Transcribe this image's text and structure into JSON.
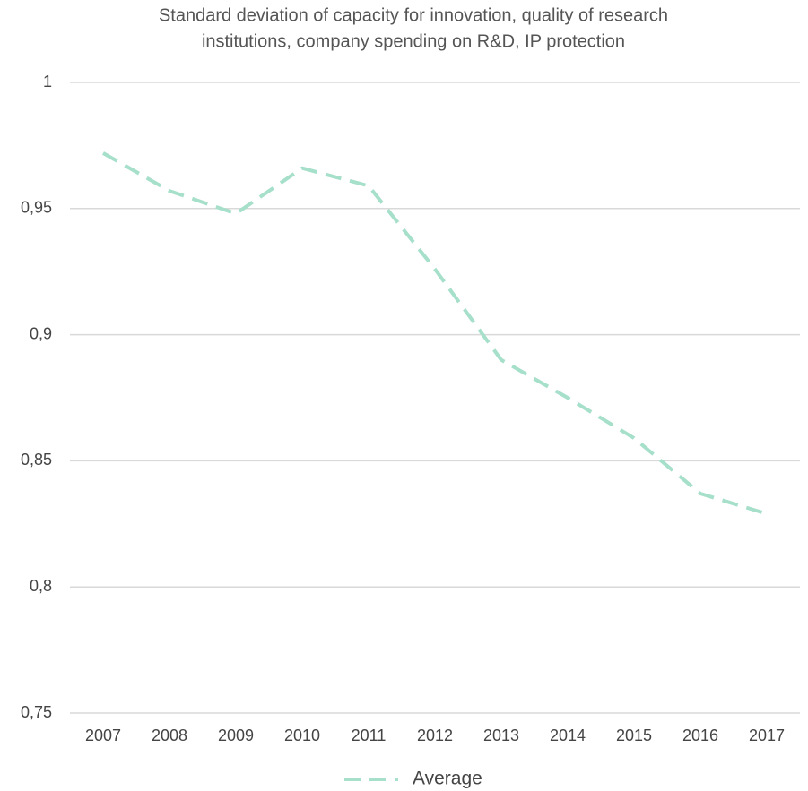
{
  "chart_data": {
    "type": "line",
    "title": [
      "Standard deviation of capacity for innovation, quality of research",
      "institutions, company spending on R&D, IP protection"
    ],
    "categories": [
      "2007",
      "2008",
      "2009",
      "2010",
      "2011",
      "2012",
      "2013",
      "2014",
      "2015",
      "2016",
      "2017"
    ],
    "series": [
      {
        "name": "Average",
        "color": "#a6dfca",
        "values": [
          0.972,
          0.957,
          0.948,
          0.966,
          0.959,
          0.926,
          0.89,
          0.875,
          0.859,
          0.837,
          0.829
        ]
      }
    ],
    "ylim": [
      0.75,
      1
    ],
    "yticks": [
      {
        "value": 0.75,
        "label": "0,75"
      },
      {
        "value": 0.8,
        "label": "0,8"
      },
      {
        "value": 0.85,
        "label": "0,85"
      },
      {
        "value": 0.9,
        "label": "0,9"
      },
      {
        "value": 0.95,
        "label": "0,95"
      },
      1
    ],
    "grid": true,
    "legend": "bottom"
  }
}
